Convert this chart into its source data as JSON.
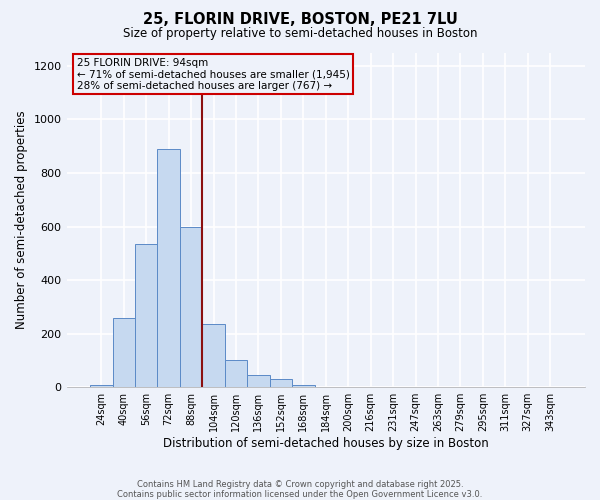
{
  "title": "25, FLORIN DRIVE, BOSTON, PE21 7LU",
  "subtitle": "Size of property relative to semi-detached houses in Boston",
  "xlabel": "Distribution of semi-detached houses by size in Boston",
  "ylabel": "Number of semi-detached properties",
  "bar_labels": [
    "24sqm",
    "40sqm",
    "56sqm",
    "72sqm",
    "88sqm",
    "104sqm",
    "120sqm",
    "136sqm",
    "152sqm",
    "168sqm",
    "184sqm",
    "200sqm",
    "216sqm",
    "231sqm",
    "247sqm",
    "263sqm",
    "279sqm",
    "295sqm",
    "311sqm",
    "327sqm",
    "343sqm"
  ],
  "bar_values": [
    10,
    260,
    535,
    890,
    600,
    235,
    100,
    45,
    32,
    10,
    0,
    0,
    0,
    0,
    0,
    0,
    0,
    0,
    0,
    0,
    0
  ],
  "bar_color": "#c6d9f0",
  "bar_edge_color": "#5b8ac7",
  "vline_color": "#8b1010",
  "annotation_title": "25 FLORIN DRIVE: 94sqm",
  "annotation_line1": "← 71% of semi-detached houses are smaller (1,945)",
  "annotation_line2": "28% of semi-detached houses are larger (767) →",
  "annotation_box_edge_color": "#cc0000",
  "ylim": [
    0,
    1250
  ],
  "yticks": [
    0,
    200,
    400,
    600,
    800,
    1000,
    1200
  ],
  "footer1": "Contains HM Land Registry data © Crown copyright and database right 2025.",
  "footer2": "Contains public sector information licensed under the Open Government Licence v3.0.",
  "background_color": "#eef2fa",
  "grid_color": "#d0d8e8"
}
